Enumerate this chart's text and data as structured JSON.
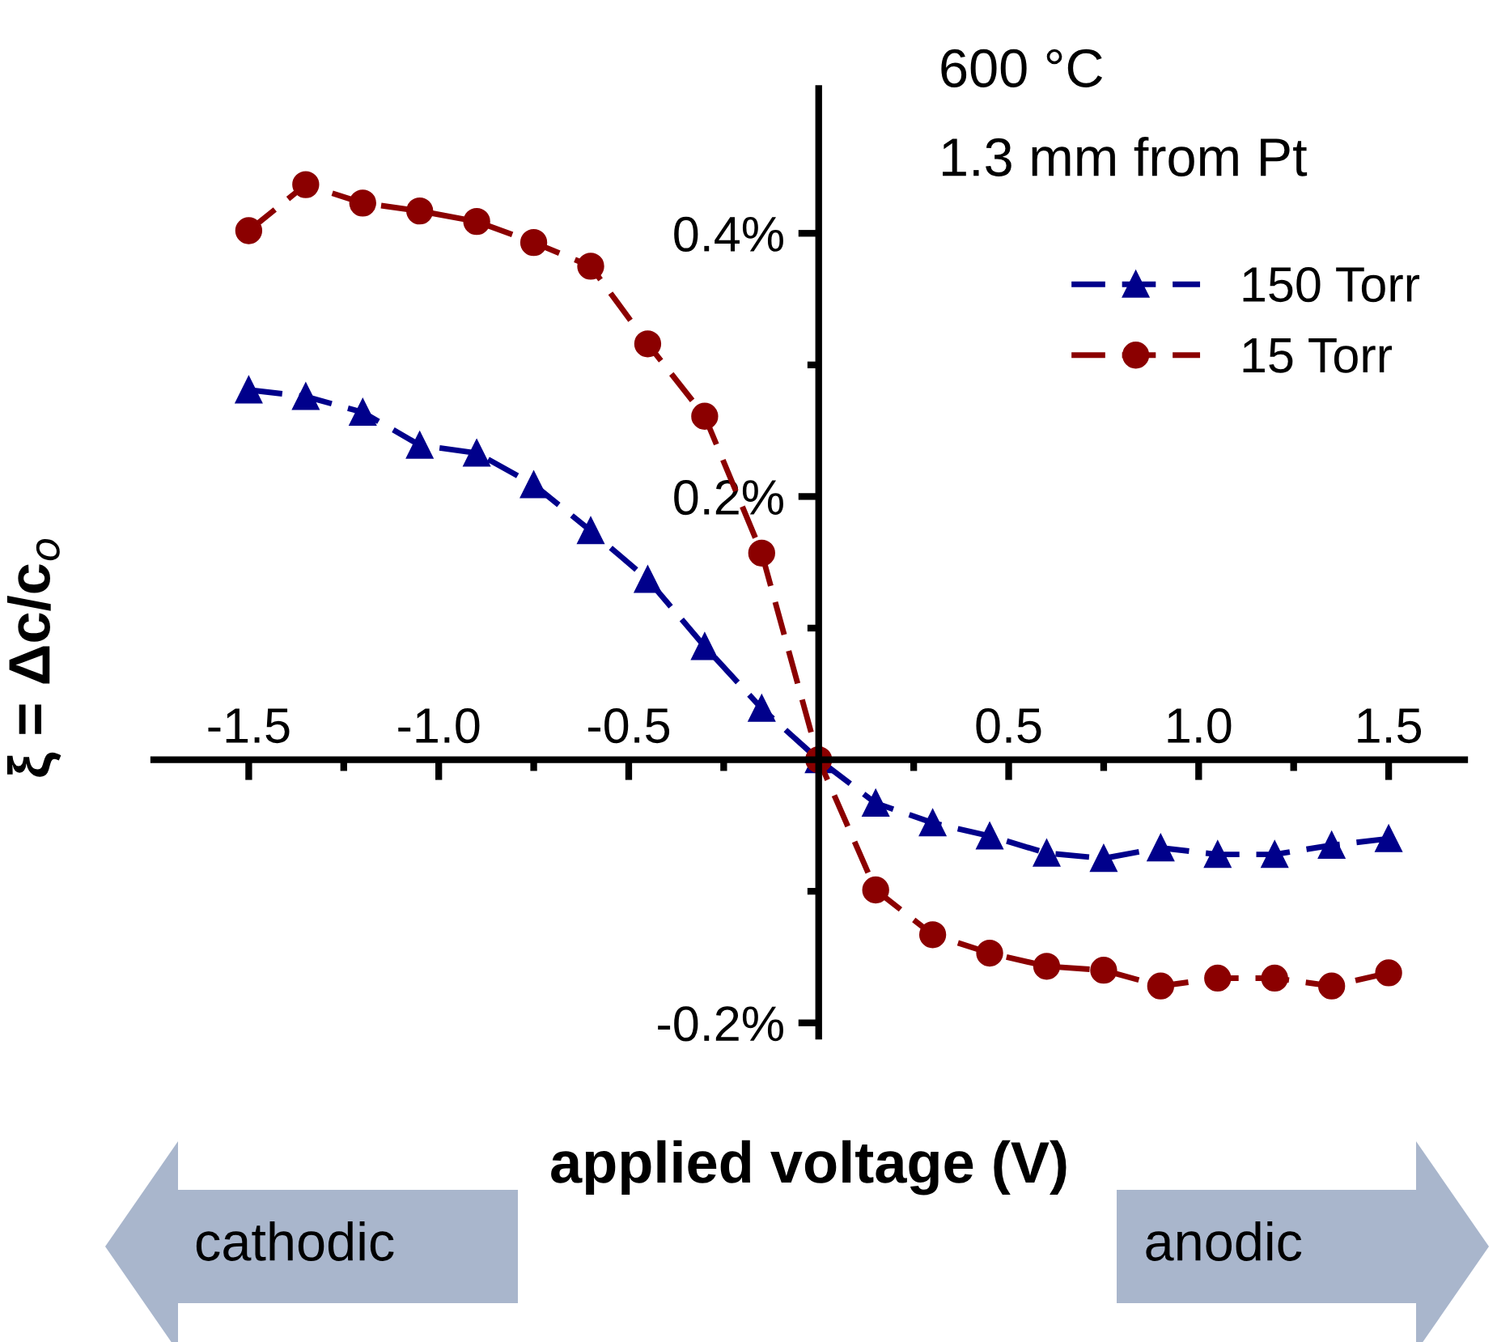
{
  "chart_data": {
    "type": "line",
    "xlabel": "applied voltage (V)",
    "ylabel": "ξ = Δc/c$_{o}$",
    "x": [
      -1.5,
      -1.35,
      -1.2,
      -1.05,
      -0.9,
      -0.75,
      -0.6,
      -0.45,
      -0.3,
      -0.15,
      0,
      0.15,
      0.3,
      0.45,
      0.6,
      0.75,
      0.9,
      1.05,
      1.2,
      1.35,
      1.5
    ],
    "series": [
      {
        "name": "150 Torr",
        "color": "#00008b",
        "marker": "triangle",
        "line_style": "dashed",
        "values": [
          0.281,
          0.276,
          0.264,
          0.239,
          0.233,
          0.209,
          0.174,
          0.137,
          0.086,
          0.039,
          0,
          -0.033,
          -0.048,
          -0.058,
          -0.071,
          -0.075,
          -0.067,
          -0.072,
          -0.072,
          -0.065,
          -0.06
        ]
      },
      {
        "name": "15 Torr",
        "color": "#8b0000",
        "marker": "circle",
        "line_style": "dashed",
        "values": [
          0.402,
          0.437,
          0.423,
          0.417,
          0.409,
          0.393,
          0.375,
          0.316,
          0.261,
          0.157,
          0,
          -0.099,
          -0.133,
          -0.147,
          -0.157,
          -0.16,
          -0.172,
          -0.166,
          -0.166,
          -0.172,
          -0.162
        ]
      }
    ],
    "xlim": [
      -1.75,
      1.7
    ],
    "ylim": [
      -0.21,
      0.51
    ],
    "xticks": [
      -1.5,
      {
        "value": -1.25,
        "label": null
      },
      {
        "value": -1.0,
        "label": "-1.0"
      },
      {
        "value": -0.75,
        "label": null
      },
      -0.5,
      {
        "value": -0.25,
        "label": null
      },
      {
        "value": 0,
        "label": null
      },
      {
        "value": 0.25,
        "label": null
      },
      0.5,
      {
        "value": 0.75,
        "label": null
      },
      {
        "value": 1.0,
        "label": "1.0"
      },
      {
        "value": 1.25,
        "label": null
      },
      1.5
    ],
    "yticks": [
      {
        "value": -0.2,
        "label": "-0.2%"
      },
      {
        "value": -0.1,
        "label": null
      },
      {
        "value": 0,
        "label": null
      },
      {
        "value": 0.1,
        "label": null
      },
      {
        "value": 0.2,
        "label": "0.2%"
      },
      {
        "value": 0.3,
        "label": null
      },
      {
        "value": 0.4,
        "label": "0.4%"
      }
    ],
    "legend": "top right",
    "grid": false,
    "annotations": [
      "600 °C",
      "1.3 mm from Pt",
      "cathodic",
      "anodic"
    ]
  }
}
